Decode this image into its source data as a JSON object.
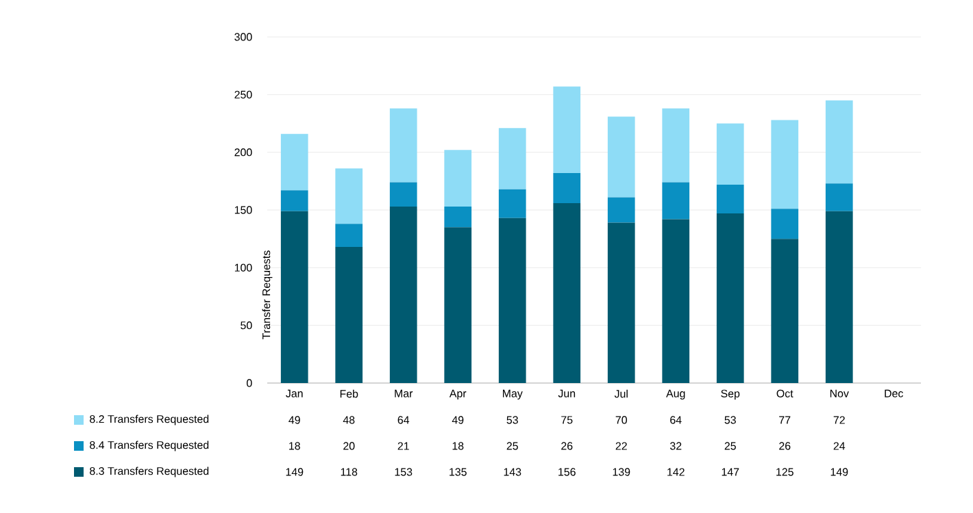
{
  "chart_data": {
    "type": "bar",
    "stacked": true,
    "ylabel": "Transfer Requests",
    "categories": [
      "Jan",
      "Feb",
      "Mar",
      "Apr",
      "May",
      "Jun",
      "Jul",
      "Aug",
      "Sep",
      "Oct",
      "Nov",
      "Dec"
    ],
    "series": [
      {
        "name": "8.3 Transfers Requested",
        "color": "#005a70",
        "values": [
          149,
          118,
          153,
          135,
          143,
          156,
          139,
          142,
          147,
          125,
          149,
          null
        ]
      },
      {
        "name": "8.4 Transfers Requested",
        "color": "#0a90c2",
        "values": [
          18,
          20,
          21,
          18,
          25,
          26,
          22,
          32,
          25,
          26,
          24,
          null
        ]
      },
      {
        "name": "8.2 Transfers Requested",
        "color": "#8edcf6",
        "values": [
          49,
          48,
          64,
          49,
          53,
          75,
          70,
          64,
          53,
          77,
          72,
          null
        ]
      }
    ],
    "ylim": [
      0,
      300
    ],
    "yticks": [
      0,
      50,
      100,
      150,
      200,
      250,
      300
    ],
    "grid": "y",
    "legend": "bottom left",
    "data_labels": true
  }
}
